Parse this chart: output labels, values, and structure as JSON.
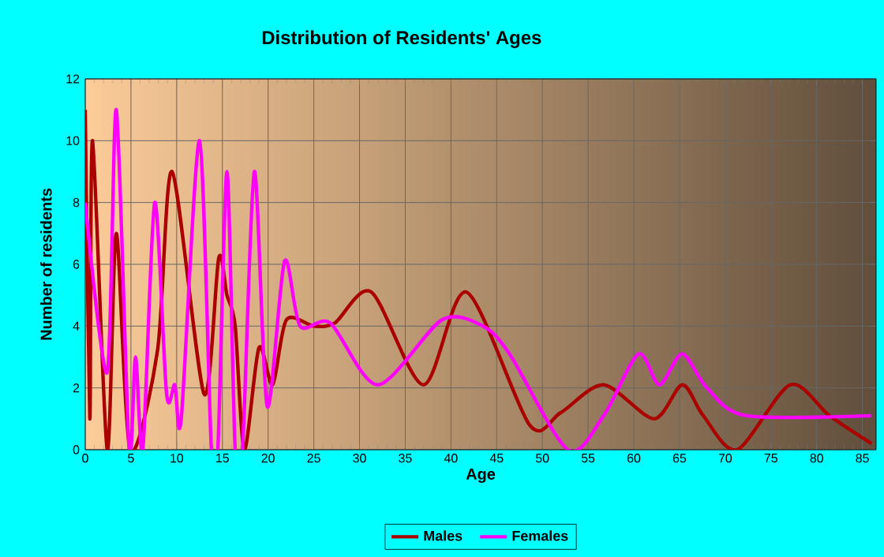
{
  "chart_data": {
    "type": "line",
    "title": "Distribution of Residents' Ages",
    "xlabel": "Age",
    "ylabel": "Number of residents",
    "xlim": [
      0,
      86.5
    ],
    "xticks": [
      0,
      5,
      10,
      15,
      20,
      25,
      30,
      35,
      40,
      45,
      50,
      55,
      60,
      65,
      70,
      75,
      80,
      85
    ],
    "ylim": [
      0,
      12
    ],
    "yticks": [
      0,
      2,
      4,
      6,
      8,
      10,
      12
    ],
    "grid": true,
    "legend": "bottom",
    "series": [
      {
        "name": "Males",
        "color": "#aa0000",
        "x": [
          0,
          0.5,
          0.8,
          2.4,
          3.4,
          4.9,
          7.9,
          9.5,
          13,
          14.6,
          15.5,
          16.4,
          17.4,
          19,
          20.5,
          22,
          25,
          27.3,
          31.3,
          37,
          41.7,
          48.6,
          52,
          56.7,
          62.2,
          65.3,
          67.6,
          71.3,
          77.1,
          81.4,
          86
        ],
        "values": [
          11,
          1,
          10,
          0,
          7,
          0,
          3.2,
          9,
          1.8,
          6.2,
          5,
          4,
          0,
          3.3,
          2.1,
          4.2,
          4,
          4.1,
          5.1,
          2.1,
          5.1,
          0.8,
          1.2,
          2.1,
          1,
          2.1,
          1.1,
          0,
          2.1,
          1.1,
          0.2
        ]
      },
      {
        "name": "Females",
        "color": "#ff00ff",
        "x": [
          0,
          2.4,
          3.4,
          4.8,
          5.5,
          6.3,
          7.6,
          8.9,
          9.8,
          10.5,
          12.5,
          13.8,
          14.5,
          15.5,
          16.4,
          17.2,
          18.5,
          19.9,
          21.8,
          23.5,
          26.8,
          32,
          39,
          43.5,
          46.4,
          52.8,
          56.7,
          60.5,
          62.8,
          65.3,
          68,
          72.3,
          86
        ],
        "values": [
          8,
          2.5,
          11,
          0,
          3,
          0,
          8,
          1.8,
          2.1,
          1,
          10,
          0,
          0,
          9,
          0,
          0,
          9,
          1.4,
          6.1,
          4,
          4.1,
          2.1,
          4.2,
          4,
          3.1,
          0,
          1.1,
          3.1,
          2.1,
          3.1,
          2,
          1.1,
          1.1
        ]
      }
    ]
  }
}
